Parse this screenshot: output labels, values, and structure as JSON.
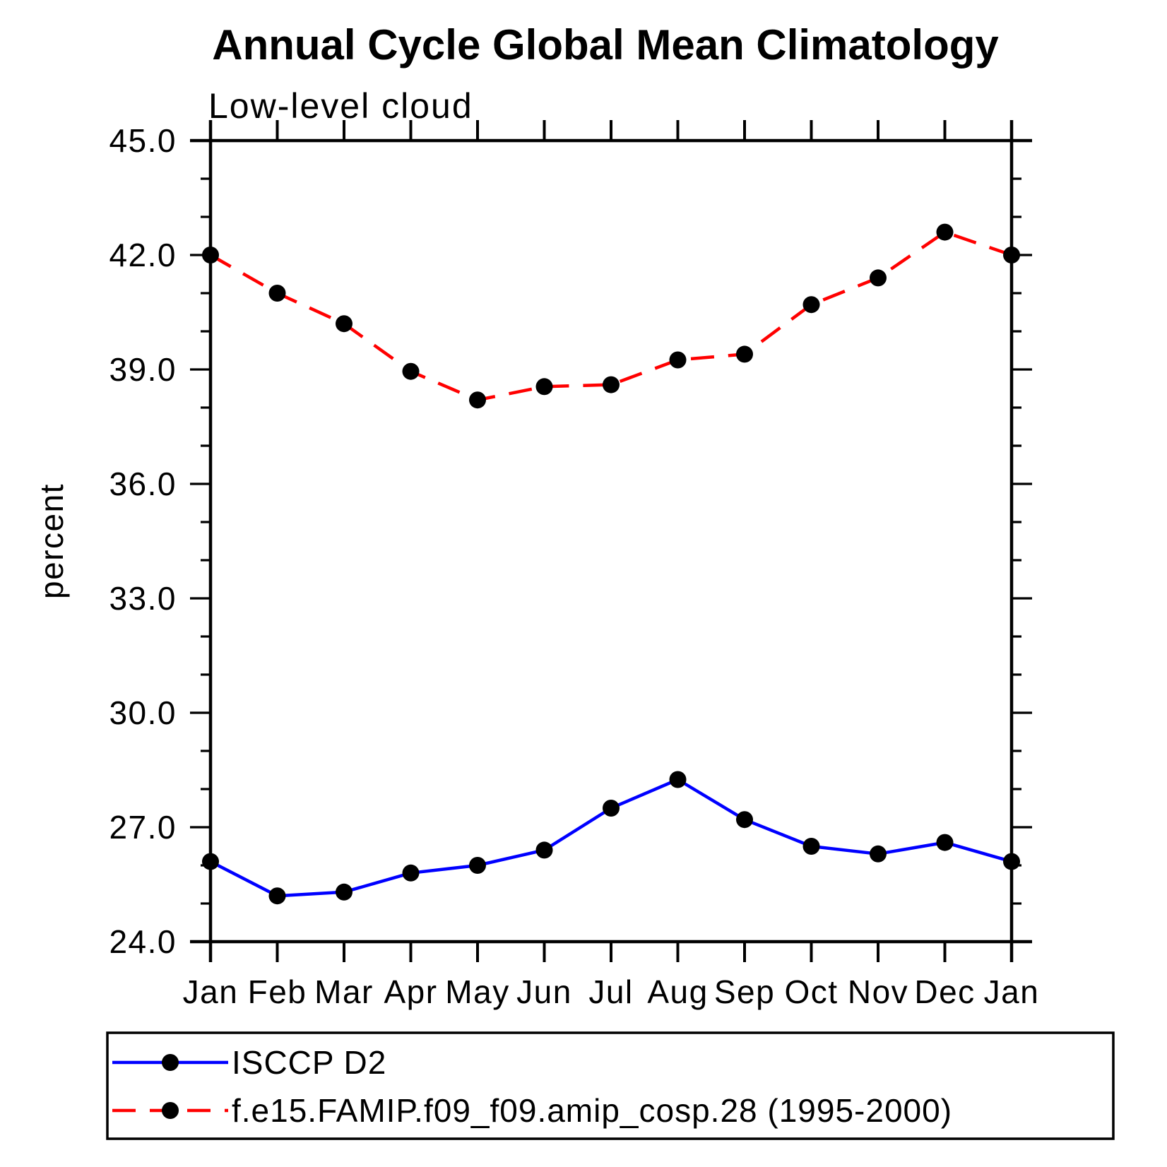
{
  "page": {
    "background_color": "#ffffff"
  },
  "chart_data": {
    "type": "line",
    "title": "Annual Cycle Global Mean Climatology",
    "subtitle": "Low-level cloud",
    "xlabel": "",
    "ylabel": "percent",
    "categories": [
      "Jan",
      "Feb",
      "Mar",
      "Apr",
      "May",
      "Jun",
      "Jul",
      "Aug",
      "Sep",
      "Oct",
      "Nov",
      "Dec",
      "Jan"
    ],
    "ylim": [
      24.0,
      45.0
    ],
    "y_major_tick_step": 3.0,
    "y_minor_tick_step": 1.0,
    "y_tick_labels": [
      "24.0",
      "27.0",
      "30.0",
      "33.0",
      "36.0",
      "39.0",
      "42.0",
      "45.0"
    ],
    "grid": false,
    "frame": "box-with-tick-overhang",
    "series": [
      {
        "name": "ISCCP D2",
        "line_color": "#0000ff",
        "line_style": "solid",
        "marker": "filled-circle",
        "marker_color": "#000000",
        "values": [
          26.1,
          25.2,
          25.3,
          25.8,
          26.0,
          26.4,
          27.5,
          28.25,
          27.2,
          26.5,
          26.3,
          26.6,
          26.1
        ]
      },
      {
        "name": "f.e15.FAMIP.f09_f09.amip_cosp.28 (1995-2000)",
        "line_color": "#ff0000",
        "line_style": "dashed",
        "marker": "filled-circle",
        "marker_color": "#000000",
        "values": [
          42.0,
          41.0,
          40.2,
          38.95,
          38.2,
          38.55,
          38.6,
          39.25,
          39.4,
          40.7,
          41.4,
          42.6,
          42.0
        ]
      }
    ],
    "legend": {
      "position": "bottom-left",
      "border": true,
      "entries": [
        "ISCCP D2",
        "f.e15.FAMIP.f09_f09.amip_cosp.28 (1995-2000)"
      ]
    },
    "axis_color": "#000000",
    "text_color": "#000000"
  }
}
